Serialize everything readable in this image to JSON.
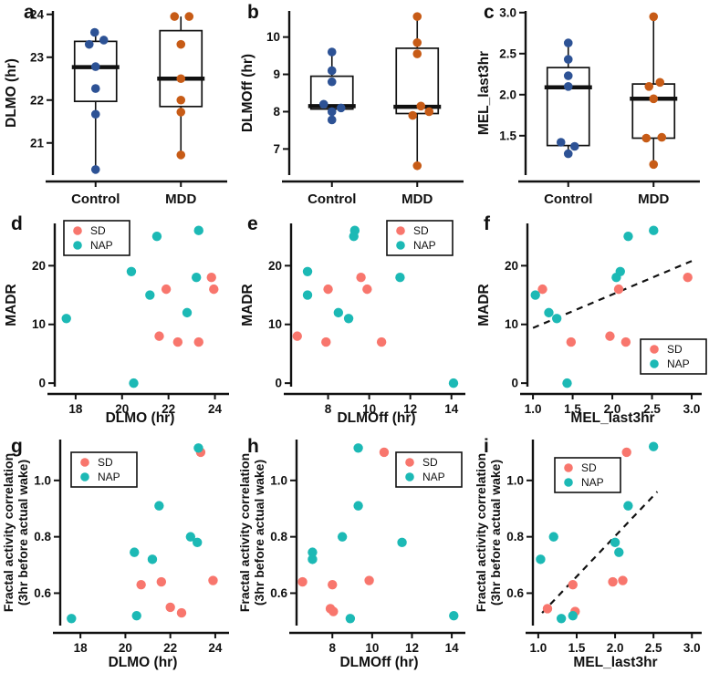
{
  "figure": {
    "colors": {
      "control": "#2D5295",
      "mdd": "#C75B16",
      "sd": "#F8766D",
      "nap": "#1CB9B5",
      "axis": "#111111"
    }
  },
  "chart_data": [
    {
      "id": "a",
      "panel_label": "a",
      "type": "box",
      "ylabel_lines": [
        "DLMO (hr)"
      ],
      "categories": [
        "Control",
        "MDD"
      ],
      "ylim": [
        20.25,
        24.08
      ],
      "yticks": [
        {
          "v": 21,
          "label": "21"
        },
        {
          "v": 22,
          "label": "22"
        },
        {
          "v": 23,
          "label": "23"
        },
        {
          "v": 24,
          "label": "24"
        }
      ],
      "groups": [
        {
          "name": "Control",
          "color": "#2D5295",
          "q1": 21.97,
          "median": 22.77,
          "q3": 23.37,
          "whisker_low": 20.38,
          "whisker_high": 23.58,
          "points": [
            {
              "v": 23.58,
              "dx": -1
            },
            {
              "v": 23.4,
              "dx": 9
            },
            {
              "v": 23.3,
              "dx": -7
            },
            {
              "v": 22.78,
              "dx": 0
            },
            {
              "v": 22.27,
              "dx": 0
            },
            {
              "v": 21.67,
              "dx": 0
            },
            {
              "v": 20.38,
              "dx": 0
            }
          ]
        },
        {
          "name": "MDD",
          "color": "#C75B16",
          "q1": 21.85,
          "median": 22.5,
          "q3": 23.62,
          "whisker_low": 20.72,
          "whisker_high": 23.95,
          "points": [
            {
              "v": 23.95,
              "dx": -7
            },
            {
              "v": 23.95,
              "dx": 9
            },
            {
              "v": 23.3,
              "dx": 0
            },
            {
              "v": 22.5,
              "dx": 0
            },
            {
              "v": 22.0,
              "dx": 0
            },
            {
              "v": 21.72,
              "dx": 0
            },
            {
              "v": 20.72,
              "dx": 0
            }
          ]
        }
      ]
    },
    {
      "id": "b",
      "panel_label": "b",
      "type": "box",
      "ylabel_lines": [
        "DLMOff (hr)"
      ],
      "categories": [
        "Control",
        "MDD"
      ],
      "ylim": [
        6.3,
        10.7
      ],
      "yticks": [
        {
          "v": 7,
          "label": "7"
        },
        {
          "v": 8,
          "label": "8"
        },
        {
          "v": 9,
          "label": "9"
        },
        {
          "v": 10,
          "label": "10"
        }
      ],
      "groups": [
        {
          "name": "Control",
          "color": "#2D5295",
          "q1": 8.07,
          "median": 8.15,
          "q3": 8.95,
          "whisker_low": 7.78,
          "whisker_high": 9.6,
          "points": [
            {
              "v": 9.6,
              "dx": 0
            },
            {
              "v": 9.1,
              "dx": 0
            },
            {
              "v": 8.8,
              "dx": 0
            },
            {
              "v": 8.2,
              "dx": -9
            },
            {
              "v": 8.1,
              "dx": 10
            },
            {
              "v": 8.0,
              "dx": 0
            },
            {
              "v": 7.78,
              "dx": 0
            }
          ]
        },
        {
          "name": "MDD",
          "color": "#C75B16",
          "q1": 7.95,
          "median": 8.13,
          "q3": 9.7,
          "whisker_low": 6.55,
          "whisker_high": 10.55,
          "points": [
            {
              "v": 10.55,
              "dx": 0
            },
            {
              "v": 9.85,
              "dx": 0
            },
            {
              "v": 9.55,
              "dx": 0
            },
            {
              "v": 8.15,
              "dx": 4
            },
            {
              "v": 8.0,
              "dx": 13
            },
            {
              "v": 7.9,
              "dx": -5
            },
            {
              "v": 6.55,
              "dx": 0
            }
          ]
        }
      ]
    },
    {
      "id": "c",
      "panel_label": "c",
      "type": "box",
      "ylabel_lines": [
        "MEL_last3hr"
      ],
      "categories": [
        "Control",
        "MDD"
      ],
      "ylim": [
        1.02,
        3.02
      ],
      "yticks": [
        {
          "v": 1.5,
          "label": "1.5"
        },
        {
          "v": 2.0,
          "label": "2.0"
        },
        {
          "v": 2.5,
          "label": "2.5"
        },
        {
          "v": 3.0,
          "label": "3.0"
        }
      ],
      "groups": [
        {
          "name": "Control",
          "color": "#2D5295",
          "q1": 1.38,
          "median": 2.09,
          "q3": 2.33,
          "whisker_low": 1.28,
          "whisker_high": 2.63,
          "points": [
            {
              "v": 2.63,
              "dx": 0
            },
            {
              "v": 2.43,
              "dx": 0
            },
            {
              "v": 2.23,
              "dx": 0
            },
            {
              "v": 2.1,
              "dx": 0
            },
            {
              "v": 1.42,
              "dx": -8
            },
            {
              "v": 1.37,
              "dx": 7
            },
            {
              "v": 1.28,
              "dx": 0
            }
          ]
        },
        {
          "name": "MDD",
          "color": "#C75B16",
          "q1": 1.47,
          "median": 1.95,
          "q3": 2.13,
          "whisker_low": 1.15,
          "whisker_high": 2.95,
          "points": [
            {
              "v": 2.95,
              "dx": 0
            },
            {
              "v": 2.15,
              "dx": 7
            },
            {
              "v": 2.1,
              "dx": -5
            },
            {
              "v": 1.95,
              "dx": 0
            },
            {
              "v": 1.48,
              "dx": 9
            },
            {
              "v": 1.47,
              "dx": -8
            },
            {
              "v": 1.15,
              "dx": 0
            }
          ]
        }
      ]
    },
    {
      "id": "d",
      "panel_label": "d",
      "type": "scatter",
      "xlabel": "DLMO (hr)",
      "ylabel_lines": [
        "MADR"
      ],
      "xlim": [
        17.1,
        24.45
      ],
      "ylim": [
        -0.6,
        27.2
      ],
      "xticks": [
        {
          "v": 18,
          "label": "18"
        },
        {
          "v": 20,
          "label": "20"
        },
        {
          "v": 22,
          "label": "22"
        },
        {
          "v": 24,
          "label": "24"
        }
      ],
      "yticks": [
        {
          "v": 0,
          "label": "0"
        },
        {
          "v": 10,
          "label": "10"
        },
        {
          "v": 20,
          "label": "20"
        }
      ],
      "legend_pos": "top-left",
      "series": [
        {
          "name": "SD",
          "color": "#F8766D",
          "points": [
            [
              21.9,
              16
            ],
            [
              23.85,
              18
            ],
            [
              23.95,
              16
            ],
            [
              21.6,
              8
            ],
            [
              22.4,
              7
            ],
            [
              23.3,
              7
            ]
          ]
        },
        {
          "name": "NAP",
          "color": "#1CB9B5",
          "points": [
            [
              17.6,
              11
            ],
            [
              20.4,
              19
            ],
            [
              21.5,
              25
            ],
            [
              23.3,
              26
            ],
            [
              21.2,
              15
            ],
            [
              23.2,
              18
            ],
            [
              22.8,
              12
            ],
            [
              20.5,
              0
            ]
          ]
        }
      ]
    },
    {
      "id": "e",
      "panel_label": "e",
      "type": "scatter",
      "xlabel": "DLMOff (hr)",
      "ylabel_lines": [
        "MADR"
      ],
      "xlim": [
        6.2,
        14.5
      ],
      "ylim": [
        -0.6,
        27.2
      ],
      "xticks": [
        {
          "v": 8,
          "label": "8"
        },
        {
          "v": 10,
          "label": "10"
        },
        {
          "v": 12,
          "label": "12"
        },
        {
          "v": 14,
          "label": "14"
        }
      ],
      "yticks": [
        {
          "v": 0,
          "label": "0"
        },
        {
          "v": 10,
          "label": "10"
        },
        {
          "v": 20,
          "label": "20"
        }
      ],
      "legend_pos": "top-right",
      "series": [
        {
          "name": "SD",
          "color": "#F8766D",
          "points": [
            [
              6.5,
              8
            ],
            [
              8.0,
              16
            ],
            [
              7.9,
              7
            ],
            [
              9.6,
              18
            ],
            [
              9.9,
              16
            ],
            [
              10.6,
              7
            ]
          ]
        },
        {
          "name": "NAP",
          "color": "#1CB9B5",
          "points": [
            [
              7.0,
              19
            ],
            [
              7.0,
              15
            ],
            [
              9.3,
              26
            ],
            [
              9.25,
              25
            ],
            [
              8.5,
              12
            ],
            [
              9.0,
              11
            ],
            [
              11.5,
              18
            ],
            [
              14.1,
              0
            ]
          ]
        }
      ]
    },
    {
      "id": "f",
      "panel_label": "f",
      "type": "scatter",
      "xlabel": "MEL_last3hr",
      "ylabel_lines": [
        "MADR"
      ],
      "xlim": [
        0.93,
        3.08
      ],
      "ylim": [
        -0.6,
        27.2
      ],
      "xticks": [
        {
          "v": 1.0,
          "label": "1.0"
        },
        {
          "v": 1.5,
          "label": "1.5"
        },
        {
          "v": 2.0,
          "label": "2.0"
        },
        {
          "v": 2.5,
          "label": "2.5"
        },
        {
          "v": 3.0,
          "label": "3.0"
        }
      ],
      "yticks": [
        {
          "v": 0,
          "label": "0"
        },
        {
          "v": 10,
          "label": "10"
        },
        {
          "v": 20,
          "label": "20"
        }
      ],
      "legend_pos": "bottom-right",
      "trend": [
        [
          1.0,
          9.4
        ],
        [
          3.0,
          20.8
        ]
      ],
      "series": [
        {
          "name": "SD",
          "color": "#F8766D",
          "points": [
            [
              1.12,
              16
            ],
            [
              1.48,
              7
            ],
            [
              1.97,
              8
            ],
            [
              2.08,
              16
            ],
            [
              2.17,
              7
            ],
            [
              2.95,
              18
            ]
          ]
        },
        {
          "name": "NAP",
          "color": "#1CB9B5",
          "points": [
            [
              1.03,
              15
            ],
            [
              1.2,
              12
            ],
            [
              1.3,
              11
            ],
            [
              1.43,
              0
            ],
            [
              2.05,
              18
            ],
            [
              2.1,
              19
            ],
            [
              2.2,
              25
            ],
            [
              2.52,
              26
            ]
          ]
        }
      ]
    },
    {
      "id": "g",
      "panel_label": "g",
      "type": "scatter",
      "xlabel": "DLMO (hr)",
      "ylabel_lines": [
        "Fractal activity correlation",
        "(3hr before actual wake)"
      ],
      "xlim": [
        17.1,
        24.45
      ],
      "ylim": [
        0.485,
        1.145
      ],
      "xticks": [
        {
          "v": 18,
          "label": "18"
        },
        {
          "v": 20,
          "label": "20"
        },
        {
          "v": 22,
          "label": "22"
        },
        {
          "v": 24,
          "label": "24"
        }
      ],
      "yticks": [
        {
          "v": 0.6,
          "label": "0.6"
        },
        {
          "v": 0.8,
          "label": "0.8"
        },
        {
          "v": 1.0,
          "label": "1.0"
        }
      ],
      "legend_pos": "top-left",
      "series": [
        {
          "name": "SD",
          "color": "#F8766D",
          "points": [
            [
              20.7,
              0.63
            ],
            [
              21.6,
              0.64
            ],
            [
              22.0,
              0.55
            ],
            [
              22.5,
              0.53
            ],
            [
              23.9,
              0.645
            ],
            [
              23.35,
              1.1
            ]
          ]
        },
        {
          "name": "NAP",
          "color": "#1CB9B5",
          "points": [
            [
              17.6,
              0.51
            ],
            [
              20.5,
              0.52
            ],
            [
              20.4,
              0.745
            ],
            [
              21.2,
              0.72
            ],
            [
              21.5,
              0.91
            ],
            [
              22.9,
              0.8
            ],
            [
              23.2,
              0.78
            ],
            [
              23.25,
              1.115
            ]
          ]
        }
      ]
    },
    {
      "id": "h",
      "panel_label": "h",
      "type": "scatter",
      "xlabel": "DLMOff (hr)",
      "ylabel_lines": [
        "Fractal activity correlation",
        "(3hr before actual wake)"
      ],
      "xlim": [
        6.2,
        14.5
      ],
      "ylim": [
        0.485,
        1.145
      ],
      "xticks": [
        {
          "v": 8,
          "label": "8"
        },
        {
          "v": 10,
          "label": "10"
        },
        {
          "v": 12,
          "label": "12"
        },
        {
          "v": 14,
          "label": "14"
        }
      ],
      "yticks": [
        {
          "v": 0.6,
          "label": "0.6"
        },
        {
          "v": 0.8,
          "label": "0.8"
        },
        {
          "v": 1.0,
          "label": "1.0"
        }
      ],
      "legend_pos": "top-right",
      "series": [
        {
          "name": "SD",
          "color": "#F8766D",
          "points": [
            [
              6.5,
              0.64
            ],
            [
              8.0,
              0.63
            ],
            [
              7.9,
              0.545
            ],
            [
              8.05,
              0.535
            ],
            [
              9.85,
              0.645
            ],
            [
              10.6,
              1.1
            ]
          ]
        },
        {
          "name": "NAP",
          "color": "#1CB9B5",
          "points": [
            [
              7.0,
              0.745
            ],
            [
              7.0,
              0.72
            ],
            [
              8.5,
              0.8
            ],
            [
              9.3,
              0.91
            ],
            [
              9.3,
              1.115
            ],
            [
              8.9,
              0.51
            ],
            [
              11.5,
              0.78
            ],
            [
              14.1,
              0.52
            ]
          ]
        }
      ]
    },
    {
      "id": "i",
      "panel_label": "i",
      "type": "scatter",
      "xlabel": "MEL_last3hr",
      "ylabel_lines": [
        "Fractal activity correlation",
        "(3hr before actual wake)"
      ],
      "xlim": [
        0.93,
        3.08
      ],
      "ylim": [
        0.485,
        1.145
      ],
      "xticks": [
        {
          "v": 1.0,
          "label": "1.0"
        },
        {
          "v": 1.5,
          "label": "1.5"
        },
        {
          "v": 2.0,
          "label": "2.0"
        },
        {
          "v": 2.5,
          "label": "2.5"
        },
        {
          "v": 3.0,
          "label": "3.0"
        }
      ],
      "yticks": [
        {
          "v": 0.6,
          "label": "0.6"
        },
        {
          "v": 0.8,
          "label": "0.8"
        },
        {
          "v": 1.0,
          "label": "1.0"
        }
      ],
      "legend_pos": "top-left",
      "trend": [
        [
          1.05,
          0.53
        ],
        [
          2.55,
          0.96
        ]
      ],
      "series": [
        {
          "name": "SD",
          "color": "#F8766D",
          "points": [
            [
              1.12,
              0.545
            ],
            [
              1.45,
              0.63
            ],
            [
              1.48,
              0.535
            ],
            [
              1.97,
              0.64
            ],
            [
              2.1,
              0.645
            ],
            [
              2.15,
              1.1
            ]
          ]
        },
        {
          "name": "NAP",
          "color": "#1CB9B5",
          "points": [
            [
              1.03,
              0.72
            ],
            [
              1.2,
              0.8
            ],
            [
              1.3,
              0.51
            ],
            [
              1.45,
              0.52
            ],
            [
              2.0,
              0.78
            ],
            [
              2.05,
              0.745
            ],
            [
              2.17,
              0.91
            ],
            [
              2.5,
              1.12
            ]
          ]
        }
      ]
    }
  ]
}
